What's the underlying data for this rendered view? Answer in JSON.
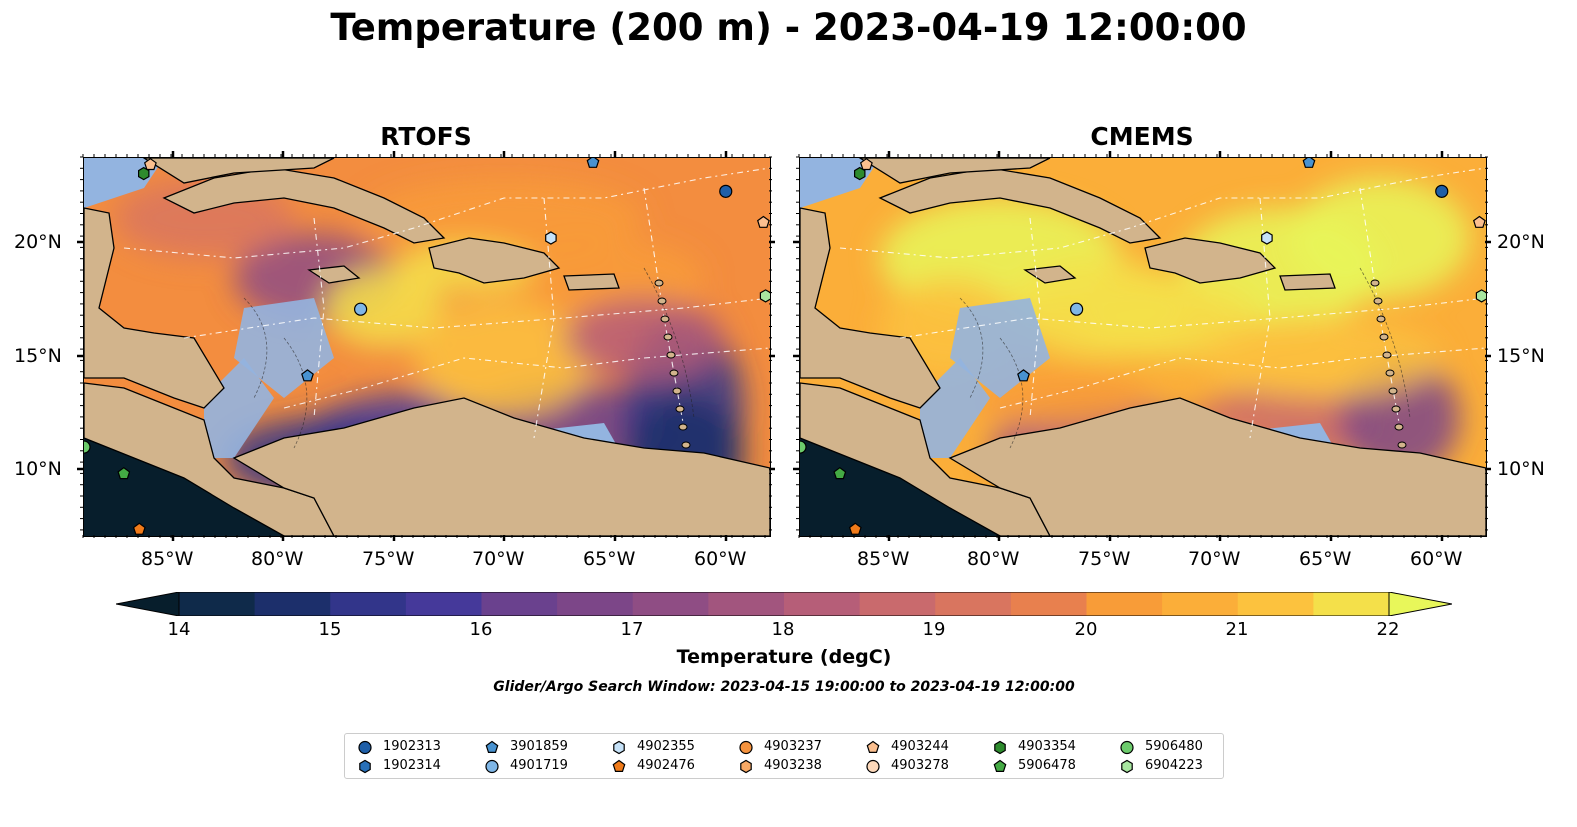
{
  "title": "Temperature (200 m) - 2023-04-19 12:00:00",
  "panels": [
    {
      "title": "RTOFS"
    },
    {
      "title": "CMEMS"
    }
  ],
  "axes": {
    "lon_ticks": [
      "85°W",
      "80°W",
      "75°W",
      "70°W",
      "65°W",
      "60°W"
    ],
    "lat_ticks": [
      "20°N",
      "15°N",
      "10°N"
    ],
    "lon_range": [
      -89,
      -58
    ],
    "lat_range": [
      7,
      24
    ]
  },
  "colorbar": {
    "label": "Temperature (degC)",
    "ticks": [
      "14",
      "15",
      "16",
      "17",
      "18",
      "19",
      "20",
      "21",
      "22"
    ],
    "range": [
      14,
      22
    ],
    "step": 0.5,
    "extend": "both",
    "colors": [
      "#071e2c",
      "#0f2a4a",
      "#1c2f6b",
      "#32358a",
      "#45399a",
      "#573c94",
      "#6a418e",
      "#7c4688",
      "#8f4d84",
      "#a2557e",
      "#b65e78",
      "#c96a6d",
      "#d9755f",
      "#e8804e",
      "#f38d3f",
      "#f89c38",
      "#fbae39",
      "#fcc23e",
      "#f4e04a",
      "#e8f75a"
    ]
  },
  "search_window": "Glider/Argo Search Window: 2023-04-15 19:00:00 to 2023-04-19 12:00:00",
  "land_color": "#d2b48c",
  "shelf_color": "#93b4e0",
  "legend": [
    {
      "id": "1902313",
      "marker": "circle",
      "color": "#1f5fa8"
    },
    {
      "id": "1902314",
      "marker": "hexagon",
      "color": "#2870b8"
    },
    {
      "id": "3901859",
      "marker": "pentagon",
      "color": "#4892d0"
    },
    {
      "id": "4901719",
      "marker": "circle",
      "color": "#7fb6e6"
    },
    {
      "id": "4902355",
      "marker": "hexagon",
      "color": "#c6e2f8"
    },
    {
      "id": "4902476",
      "marker": "pentagon",
      "color": "#f07b1a"
    },
    {
      "id": "4903237",
      "marker": "circle",
      "color": "#f5933e"
    },
    {
      "id": "4903238",
      "marker": "hexagon",
      "color": "#f8a965"
    },
    {
      "id": "4903244",
      "marker": "pentagon",
      "color": "#fbbf8f"
    },
    {
      "id": "4903278",
      "marker": "circle",
      "color": "#fdd9bb"
    },
    {
      "id": "4903354",
      "marker": "hexagon",
      "color": "#2e8b2e"
    },
    {
      "id": "5906478",
      "marker": "pentagon",
      "color": "#44aa44"
    },
    {
      "id": "5906480",
      "marker": "circle",
      "color": "#6ccb6c"
    },
    {
      "id": "6904223",
      "marker": "hexagon",
      "color": "#a8e6a0"
    }
  ]
}
